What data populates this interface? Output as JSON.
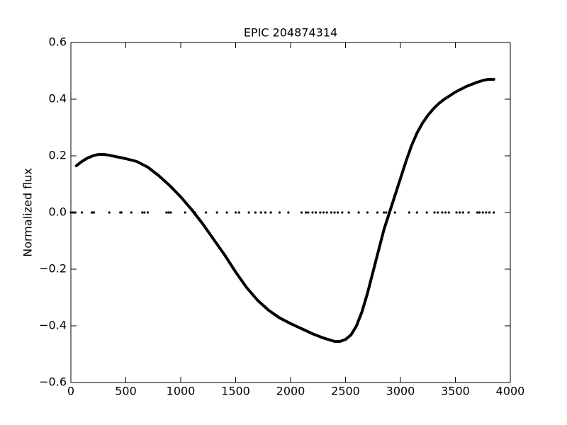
{
  "chart_data": {
    "type": "line",
    "title": "EPIC 204874314",
    "ylabel": "Normalized flux",
    "xlim": [
      0,
      4000
    ],
    "xticks": [
      0,
      500,
      1000,
      1500,
      2000,
      2500,
      3000,
      3500,
      4000
    ],
    "ylim": [
      -0.6,
      0.6
    ],
    "yticks": [
      {
        "value": -0.6,
        "label": "−0.6"
      },
      {
        "value": -0.4,
        "label": "−0.4"
      },
      {
        "value": -0.2,
        "label": "−0.2"
      },
      {
        "value": 0,
        "label": "0.0"
      },
      0.2,
      0.4,
      0.6
    ],
    "series": [
      {
        "type": "line",
        "color": "#000000",
        "x": [
          50,
          100,
          150,
          200,
          250,
          300,
          350,
          400,
          500,
          600,
          700,
          800,
          900,
          1000,
          1100,
          1200,
          1300,
          1400,
          1500,
          1600,
          1700,
          1800,
          1900,
          2000,
          2100,
          2200,
          2300,
          2400,
          2450,
          2500,
          2550,
          2600,
          2650,
          2700,
          2750,
          2800,
          2850,
          2900,
          2950,
          3000,
          3050,
          3100,
          3150,
          3200,
          3250,
          3300,
          3350,
          3400,
          3500,
          3600,
          3700,
          3750,
          3800,
          3850
        ],
        "values": [
          0.165,
          0.18,
          0.192,
          0.2,
          0.205,
          0.205,
          0.202,
          0.198,
          0.19,
          0.18,
          0.16,
          0.13,
          0.095,
          0.055,
          0.01,
          -0.04,
          -0.095,
          -0.15,
          -0.21,
          -0.265,
          -0.31,
          -0.345,
          -0.372,
          -0.392,
          -0.41,
          -0.428,
          -0.443,
          -0.455,
          -0.455,
          -0.448,
          -0.432,
          -0.4,
          -0.35,
          -0.285,
          -0.21,
          -0.135,
          -0.06,
          0.0,
          0.06,
          0.12,
          0.18,
          0.235,
          0.28,
          0.315,
          0.343,
          0.366,
          0.385,
          0.4,
          0.425,
          0.445,
          0.46,
          0.466,
          0.47,
          0.47
        ]
      },
      {
        "type": "scatter",
        "color": "#000000",
        "x": [
          0,
          20,
          40,
          100,
          190,
          200,
          210,
          350,
          450,
          460,
          550,
          650,
          670,
          700,
          870,
          890,
          910,
          1040,
          1130,
          1230,
          1330,
          1420,
          1500,
          1530,
          1620,
          1680,
          1730,
          1770,
          1820,
          1900,
          1980,
          2100,
          2140,
          2160,
          2200,
          2230,
          2270,
          2300,
          2330,
          2370,
          2400,
          2430,
          2470,
          2530,
          2620,
          2700,
          2790,
          2850,
          2870,
          2950,
          3080,
          3150,
          3240,
          3310,
          3340,
          3380,
          3410,
          3440,
          3510,
          3540,
          3570,
          3620,
          3700,
          3720,
          3750,
          3780,
          3810,
          3850
        ],
        "values": [
          0,
          0,
          0,
          0,
          0,
          0,
          0,
          0,
          0,
          0,
          0,
          0,
          0,
          0,
          0,
          0,
          0,
          0,
          0,
          0,
          0,
          0,
          0,
          0,
          0,
          0,
          0,
          0,
          0,
          0,
          0,
          0,
          0,
          0,
          0,
          0,
          0,
          0,
          0,
          0,
          0,
          0,
          0,
          0,
          0,
          0,
          0,
          0,
          0,
          0,
          0,
          0,
          0,
          0,
          0,
          0,
          0,
          0,
          0,
          0,
          0,
          0,
          0,
          0,
          0,
          0,
          0,
          0
        ]
      }
    ]
  }
}
